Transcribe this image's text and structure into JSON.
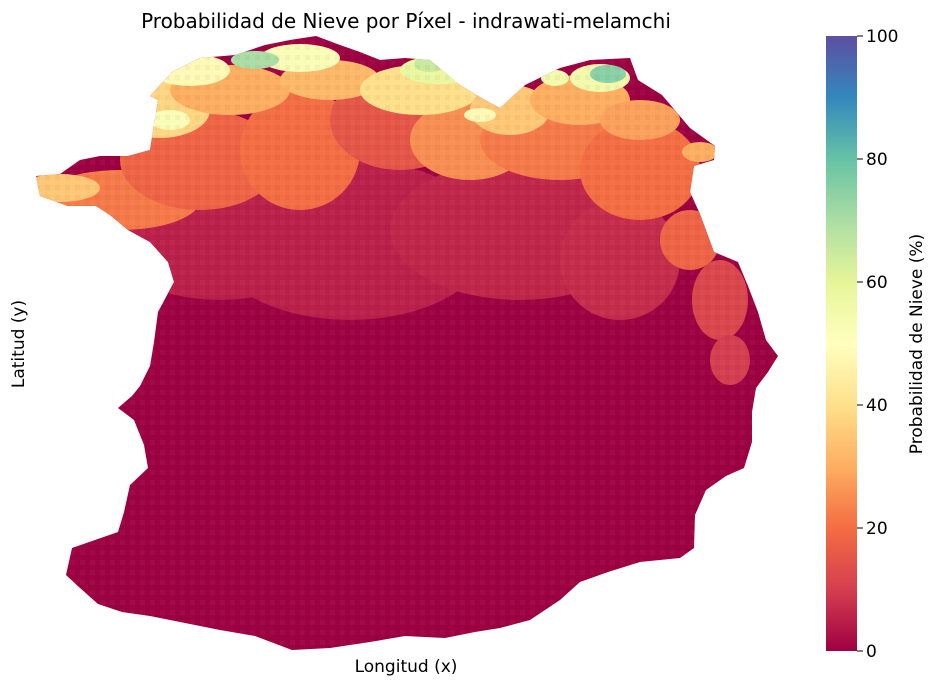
{
  "chart_data": {
    "type": "heatmap",
    "title": "Probabilidad de Nieve por Píxel - indrawati-melamchi",
    "xlabel": "Longitud (x)",
    "ylabel": "Latitud (y)",
    "x_ticks": [],
    "y_ticks": [],
    "colorbar": {
      "label": "Probabilidad de Nieve (%)",
      "colormap": "Spectral",
      "range": [
        0,
        100
      ],
      "ticks": [
        "0",
        "20",
        "40",
        "60",
        "80",
        "100"
      ]
    },
    "grid": false,
    "legend": "none",
    "value_pattern": "Snow probability per pixel over the indrawati-melamchi catchment: values near 0% across the southern and central basin, rising northward to roughly 20–40% along the northern ridges, with isolated patches of about 60–75% at the northern edge.",
    "background_color": "#ffffff"
  }
}
